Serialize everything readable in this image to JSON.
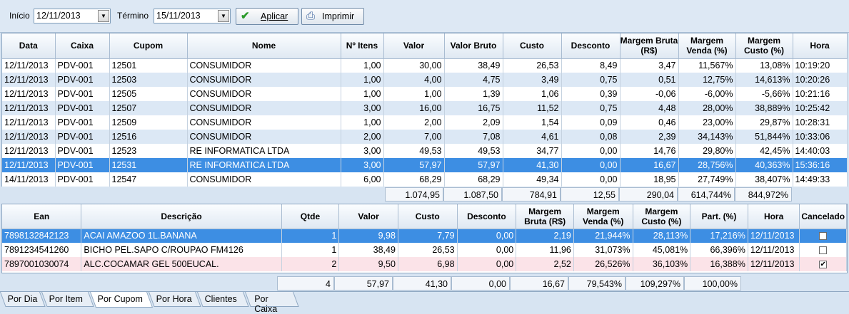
{
  "toolbar": {
    "inicio_label": "Início",
    "inicio_value": "12/11/2013",
    "termino_label": "Término",
    "termino_value": "15/11/2013",
    "aplicar_label": "Aplicar",
    "imprimir_label": "Imprimir"
  },
  "cupons": {
    "headers": [
      "Data",
      "Caixa",
      "Cupom",
      "Nome",
      "Nº Itens",
      "Valor",
      "Valor Bruto",
      "Custo",
      "Desconto",
      "Margem Bruta (R$)",
      "Margem Venda (%)",
      "Margem Custo (%)",
      "Hora"
    ],
    "rows": [
      [
        "12/11/2013",
        "PDV-001",
        "12501",
        "CONSUMIDOR",
        "1,00",
        "30,00",
        "38,49",
        "26,53",
        "8,49",
        "3,47",
        "11,567%",
        "13,08%",
        "10:19:20"
      ],
      [
        "12/11/2013",
        "PDV-001",
        "12503",
        "CONSUMIDOR",
        "1,00",
        "4,00",
        "4,75",
        "3,49",
        "0,75",
        "0,51",
        "12,75%",
        "14,613%",
        "10:20:26"
      ],
      [
        "12/11/2013",
        "PDV-001",
        "12505",
        "CONSUMIDOR",
        "1,00",
        "1,00",
        "1,39",
        "1,06",
        "0,39",
        "-0,06",
        "-6,00%",
        "-5,66%",
        "10:21:16"
      ],
      [
        "12/11/2013",
        "PDV-001",
        "12507",
        "CONSUMIDOR",
        "3,00",
        "16,00",
        "16,75",
        "11,52",
        "0,75",
        "4,48",
        "28,00%",
        "38,889%",
        "10:25:42"
      ],
      [
        "12/11/2013",
        "PDV-001",
        "12509",
        "CONSUMIDOR",
        "1,00",
        "2,00",
        "2,09",
        "1,54",
        "0,09",
        "0,46",
        "23,00%",
        "29,87%",
        "10:28:31"
      ],
      [
        "12/11/2013",
        "PDV-001",
        "12516",
        "CONSUMIDOR",
        "2,00",
        "7,00",
        "7,08",
        "4,61",
        "0,08",
        "2,39",
        "34,143%",
        "51,844%",
        "10:33:06"
      ],
      [
        "12/11/2013",
        "PDV-001",
        "12523",
        "RE INFORMATICA LTDA",
        "3,00",
        "49,53",
        "49,53",
        "34,77",
        "0,00",
        "14,76",
        "29,80%",
        "42,45%",
        "14:40:03"
      ],
      [
        "12/11/2013",
        "PDV-001",
        "12531",
        "RE INFORMATICA LTDA",
        "3,00",
        "57,97",
        "57,97",
        "41,30",
        "0,00",
        "16,67",
        "28,756%",
        "40,363%",
        "15:36:16"
      ],
      [
        "14/11/2013",
        "PDV-001",
        "12547",
        "CONSUMIDOR",
        "6,00",
        "68,29",
        "68,29",
        "49,34",
        "0,00",
        "18,95",
        "27,749%",
        "38,407%",
        "14:49:33"
      ]
    ],
    "totals": [
      "1.074,95",
      "1.087,50",
      "784,91",
      "12,55",
      "290,04",
      "614,744%",
      "844,972%"
    ]
  },
  "itens": {
    "headers": [
      "Ean",
      "Descrição",
      "Qtde",
      "Valor",
      "Custo",
      "Desconto",
      "Margem Bruta (R$)",
      "Margem Venda (%)",
      "Margem Custo (%)",
      "Part. (%)",
      "Hora",
      "Cancelado"
    ],
    "rows": [
      [
        "7898132842123",
        "ACAI AMAZOO 1L.BANANA",
        "1",
        "9,98",
        "7,79",
        "0,00",
        "2,19",
        "21,944%",
        "28,113%",
        "17,216%",
        "12/11/2013",
        ""
      ],
      [
        "7891234541260",
        "BICHO PEL.SAPO C/ROUPAO FM4126",
        "1",
        "38,49",
        "26,53",
        "0,00",
        "11,96",
        "31,073%",
        "45,081%",
        "66,396%",
        "12/11/2013",
        ""
      ],
      [
        "7897001030074",
        "ALC.COCAMAR GEL 500EUCAL.",
        "2",
        "9,50",
        "6,98",
        "0,00",
        "2,52",
        "26,526%",
        "36,103%",
        "16,388%",
        "12/11/2013",
        "✔"
      ]
    ],
    "totals": [
      "4",
      "57,97",
      "41,30",
      "0,00",
      "16,67",
      "79,543%",
      "109,297%",
      "100,00%"
    ]
  },
  "tabs": [
    "Por Dia",
    "Por Item",
    "Por Cupom",
    "Por Hora",
    "Clientes",
    "Por Caixa"
  ],
  "active_tab": "Por Cupom",
  "colors": {
    "selected_row": "#3d8ee3",
    "alt_row": "#dce8f5",
    "cancel_row": "#fbe3e8"
  }
}
